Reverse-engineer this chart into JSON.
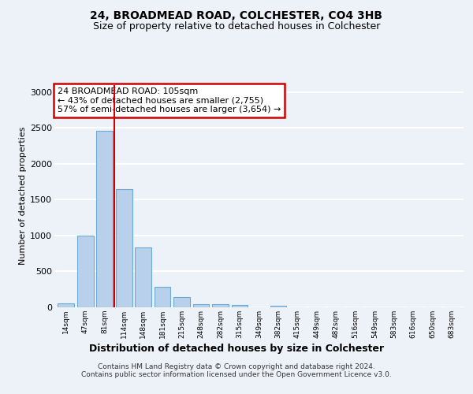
{
  "title1": "24, BROADMEAD ROAD, COLCHESTER, CO4 3HB",
  "title2": "Size of property relative to detached houses in Colchester",
  "xlabel": "Distribution of detached houses by size in Colchester",
  "ylabel": "Number of detached properties",
  "categories": [
    "14sqm",
    "47sqm",
    "81sqm",
    "114sqm",
    "148sqm",
    "181sqm",
    "215sqm",
    "248sqm",
    "282sqm",
    "315sqm",
    "349sqm",
    "382sqm",
    "415sqm",
    "449sqm",
    "482sqm",
    "516sqm",
    "549sqm",
    "583sqm",
    "616sqm",
    "650sqm",
    "683sqm"
  ],
  "values": [
    50,
    1000,
    2460,
    1650,
    830,
    290,
    140,
    40,
    40,
    30,
    0,
    20,
    0,
    0,
    0,
    0,
    0,
    0,
    0,
    0,
    0
  ],
  "bar_color": "#b8d0ea",
  "bar_edge_color": "#6aaad4",
  "vline_color": "#cc0000",
  "vline_x": 2.5,
  "annotation_line1": "24 BROADMEAD ROAD: 105sqm",
  "annotation_line2": "← 43% of detached houses are smaller (2,755)",
  "annotation_line3": "57% of semi-detached houses are larger (3,654) →",
  "annotation_box_color": "#ffffff",
  "annotation_box_edge": "#cc0000",
  "footer1": "Contains HM Land Registry data © Crown copyright and database right 2024.",
  "footer2": "Contains public sector information licensed under the Open Government Licence v3.0.",
  "bg_color": "#edf2f9",
  "grid_color": "#ffffff",
  "ylim_max": 3100,
  "yticks": [
    0,
    500,
    1000,
    1500,
    2000,
    2500,
    3000
  ]
}
